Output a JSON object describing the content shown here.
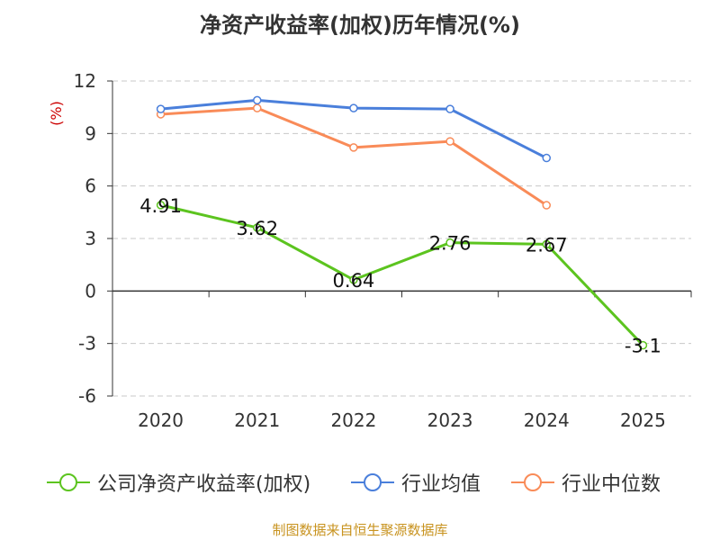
{
  "title": "净资产收益率(加权)历年情况(%)",
  "source": "制图数据来自恒生聚源数据库",
  "colors": {
    "company": "#5CC41F",
    "industry_avg": "#4A7FDB",
    "industry_median": "#F98B58",
    "unit": "#CC0000",
    "source": "#C8931F",
    "grid": "#C8C8C8",
    "axis": "#333333"
  },
  "chart_data": {
    "type": "line",
    "title": "净资产收益率(加权)历年情况(%)",
    "ylabel": "(%)",
    "xlabel": "",
    "categories": [
      "2020",
      "2021",
      "2022",
      "2023",
      "2024",
      "2025"
    ],
    "ylim": [
      -6,
      12
    ],
    "yticks": [
      -6,
      -3,
      0,
      3,
      6,
      9,
      12
    ],
    "grid": true,
    "legend_position": "bottom",
    "series": [
      {
        "name": "公司净资产收益率(加权)",
        "color": "#5CC41F",
        "values": [
          4.91,
          3.62,
          0.64,
          2.76,
          2.67,
          -3.1
        ],
        "labels": [
          "4.91",
          "3.62",
          "0.64",
          "2.76",
          "2.67",
          "-3.1"
        ]
      },
      {
        "name": "行业均值",
        "color": "#4A7FDB",
        "values": [
          10.4,
          10.9,
          10.45,
          10.4,
          7.6,
          null
        ]
      },
      {
        "name": "行业中位数",
        "color": "#F98B58",
        "values": [
          10.1,
          10.45,
          8.2,
          8.55,
          4.9,
          null
        ]
      }
    ]
  }
}
